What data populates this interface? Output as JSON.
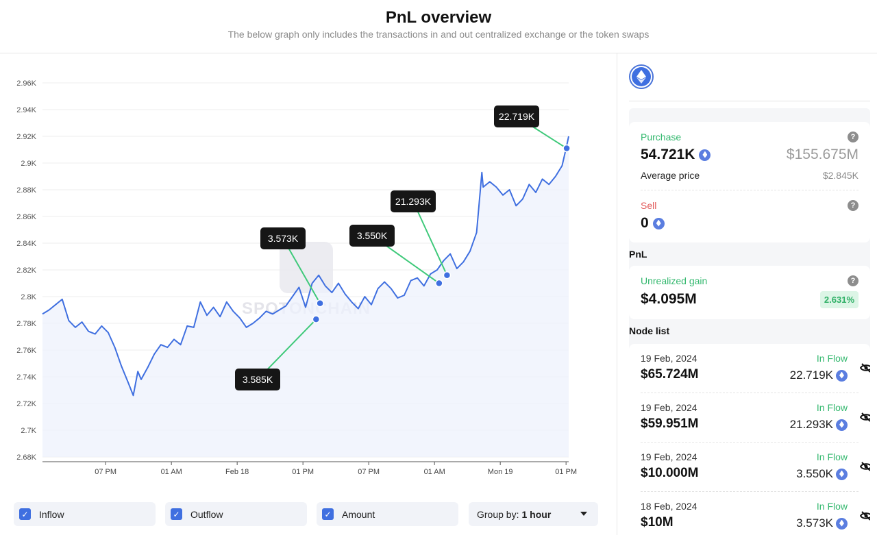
{
  "header": {
    "title": "PnL overview",
    "subtitle": "The below graph only includes the transactions in and out centralized exchange or the token swaps"
  },
  "colors": {
    "line": "#3f6fe0",
    "area": "#eef2fc",
    "annotation_line": "#3fc97a",
    "label_bg": "#161616",
    "accent_green": "#33b86e",
    "sell_red": "#e25b5b"
  },
  "watermark": "SPOTONCHAIN",
  "chart_data": {
    "type": "line",
    "title": "",
    "xlabel": "",
    "ylabel": "",
    "ylim": [
      2680,
      2960
    ],
    "y_ticks": [
      "2.68K",
      "2.7K",
      "2.72K",
      "2.74K",
      "2.76K",
      "2.78K",
      "2.8K",
      "2.82K",
      "2.84K",
      "2.86K",
      "2.88K",
      "2.9K",
      "2.92K",
      "2.94K",
      "2.96K"
    ],
    "y_tick_values": [
      2680,
      2700,
      2720,
      2740,
      2760,
      2780,
      2800,
      2820,
      2840,
      2860,
      2880,
      2900,
      2920,
      2940,
      2960
    ],
    "x_ticks": [
      {
        "label": "07 PM",
        "t": 9.6
      },
      {
        "label": "01 AM",
        "t": 19.6
      },
      {
        "label": "Feb 18",
        "t": 29.6
      },
      {
        "label": "01 PM",
        "t": 39.6
      },
      {
        "label": "07 PM",
        "t": 49.6
      },
      {
        "label": "01 AM",
        "t": 59.6
      },
      {
        "label": "Mon 19",
        "t": 69.6
      },
      {
        "label": "01 PM",
        "t": 79.6
      }
    ],
    "x_range": [
      0,
      80
    ],
    "grid": true,
    "series": [
      {
        "t": [
          0,
          1,
          2,
          3,
          4,
          5,
          6,
          7,
          8,
          9,
          10,
          11,
          12,
          13,
          13.8,
          14.5,
          15,
          16,
          17,
          18,
          19,
          20,
          21,
          22,
          23,
          24,
          25,
          26,
          27,
          28,
          29,
          30,
          31,
          32,
          33,
          34,
          35,
          36,
          37,
          38,
          39,
          40,
          41,
          42,
          43,
          44,
          45,
          46,
          47,
          48,
          49,
          50,
          51,
          52,
          53,
          54,
          55,
          56,
          57,
          58,
          59,
          60,
          61,
          62,
          63,
          64,
          65,
          66,
          66.8,
          67,
          68,
          69,
          70,
          71,
          72,
          73,
          74,
          75,
          76,
          77,
          78,
          79,
          79.6,
          80
        ],
        "values": [
          2787,
          2790,
          2794,
          2798,
          2782,
          2777,
          2781,
          2774,
          2772,
          2778,
          2773,
          2762,
          2748,
          2736,
          2726,
          2744,
          2738,
          2747,
          2757,
          2764,
          2762,
          2768,
          2764,
          2778,
          2777,
          2796,
          2786,
          2792,
          2785,
          2796,
          2789,
          2784,
          2777,
          2780,
          2784,
          2789,
          2787,
          2790,
          2793,
          2800,
          2807,
          2792,
          2810,
          2816,
          2808,
          2803,
          2810,
          2802,
          2796,
          2791,
          2800,
          2794,
          2806,
          2811,
          2806,
          2799,
          2801,
          2812,
          2814,
          2808,
          2817,
          2820,
          2827,
          2832,
          2821,
          2826,
          2834,
          2848,
          2893,
          2882,
          2886,
          2882,
          2876,
          2880,
          2868,
          2873,
          2884,
          2878,
          2888,
          2884,
          2890,
          2898,
          2911,
          2920
        ]
      }
    ],
    "annotations": [
      {
        "label": "22.719K",
        "point": [
          79.7,
          2911
        ]
      },
      {
        "label": "21.293K",
        "point": [
          61.5,
          2816
        ]
      },
      {
        "label": "3.550K",
        "point": [
          60.3,
          2810
        ]
      },
      {
        "label": "3.573K",
        "point": [
          42.2,
          2795
        ]
      },
      {
        "label": "3.585K",
        "point": [
          41.6,
          2783
        ]
      }
    ]
  },
  "controls": {
    "inflow": "Inflow",
    "outflow": "Outflow",
    "amount": "Amount",
    "group_by_label": "Group by:",
    "group_by_value": "1 hour"
  },
  "sidebar": {
    "purchase_label": "Purchase",
    "purchase_amount": "54.721K",
    "purchase_usd": "$155.675M",
    "avg_price_label": "Average price",
    "avg_price_value": "$2.845K",
    "sell_label": "Sell",
    "sell_amount": "0",
    "pnl_title": "PnL",
    "unrealized_label": "Unrealized gain",
    "unrealized_value": "$4.095M",
    "unrealized_pct": "2.631%",
    "node_list_title": "Node list",
    "nodes": [
      {
        "date": "19 Feb, 2024",
        "flow": "In Flow",
        "usd": "$65.724M",
        "amount": "22.719K"
      },
      {
        "date": "19 Feb, 2024",
        "flow": "In Flow",
        "usd": "$59.951M",
        "amount": "21.293K"
      },
      {
        "date": "19 Feb, 2024",
        "flow": "In Flow",
        "usd": "$10.000M",
        "amount": "3.550K"
      },
      {
        "date": "18 Feb, 2024",
        "flow": "In Flow",
        "usd": "$10M",
        "amount": "3.573K"
      }
    ]
  }
}
